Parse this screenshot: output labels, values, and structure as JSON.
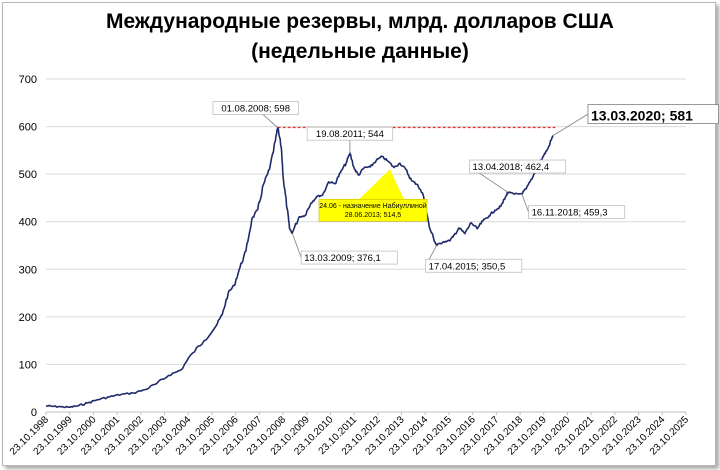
{
  "chart_data": {
    "type": "line",
    "title": "Международные резервы, млрд. долларов США",
    "subtitle": "(недельные данные)",
    "xlabel": "",
    "ylabel": "",
    "ylim": [
      0,
      700
    ],
    "yticks": [
      0,
      100,
      200,
      300,
      400,
      500,
      600,
      700
    ],
    "xlim": [
      "1998-10-23",
      "2025-10-23"
    ],
    "xtick_labels": [
      "23.10.1998",
      "23.10.1999",
      "23.10.2000",
      "23.10.2001",
      "23.10.2002",
      "23.10.2003",
      "23.10.2004",
      "23.10.2005",
      "23.10.2006",
      "23.10.2007",
      "23.10.2008",
      "23.10.2009",
      "23.10.2010",
      "23.10.2011",
      "23.10.2012",
      "23.10.2013",
      "23.10.2014",
      "23.10.2015",
      "23.10.2016",
      "23.10.2017",
      "23.10.2018",
      "23.10.2019",
      "23.10.2020",
      "23.10.2021",
      "23.10.2022",
      "23.10.2023",
      "23.10.2024",
      "23.10.2025"
    ],
    "grid": "horizontal",
    "legend": "none",
    "line_color": "#1f2a6b",
    "reference_line": {
      "value": 598,
      "color": "#e8332d",
      "style": "dashed",
      "from": "2008-08-01",
      "to": "2020-04-20"
    },
    "series": [
      {
        "x": [
          "1998-10-23",
          "1999-01-29",
          "1999-06-11",
          "1999-10-22",
          "2000-03-03",
          "2000-07-21",
          "2000-12-29",
          "2001-06-29",
          "2001-12-28",
          "2002-06-28",
          "2002-12-27",
          "2003-06-27",
          "2003-12-26",
          "2004-06-25",
          "2004-12-31",
          "2005-06-24",
          "2005-12-30",
          "2006-03-31",
          "2006-06-30",
          "2006-09-29",
          "2006-12-29",
          "2007-03-30",
          "2007-06-29",
          "2007-09-28",
          "2007-12-28",
          "2008-03-28",
          "2008-06-27",
          "2008-08-01",
          "2008-09-26",
          "2008-10-31",
          "2008-12-26",
          "2009-01-30",
          "2009-03-13",
          "2009-06-26",
          "2009-09-25",
          "2009-12-25",
          "2010-03-26",
          "2010-06-25",
          "2010-09-24",
          "2010-12-31",
          "2011-03-25",
          "2011-06-24",
          "2011-08-19",
          "2011-10-28",
          "2011-12-30",
          "2012-03-30",
          "2012-06-29",
          "2012-09-28",
          "2012-12-28",
          "2013-03-29",
          "2013-06-28",
          "2013-09-27",
          "2013-12-27",
          "2014-03-28",
          "2014-06-27",
          "2014-09-26",
          "2014-12-26",
          "2015-03-27",
          "2015-04-17",
          "2015-07-31",
          "2015-10-30",
          "2015-12-25",
          "2016-03-25",
          "2016-06-24",
          "2016-09-30",
          "2016-12-30",
          "2017-03-31",
          "2017-06-30",
          "2017-09-29",
          "2017-12-29",
          "2018-03-30",
          "2018-04-13",
          "2018-07-27",
          "2018-11-16",
          "2019-01-25",
          "2019-04-26",
          "2019-07-26",
          "2019-10-25",
          "2019-12-27",
          "2020-03-13"
        ],
        "values": [
          13,
          12,
          11,
          10,
          13,
          19,
          26,
          32,
          37,
          40,
          47,
          60,
          77,
          88,
          124,
          150,
          182,
          205,
          250,
          266,
          304,
          338,
          405,
          425,
          479,
          510,
          570,
          598,
          556,
          484,
          427,
          386,
          376,
          410,
          413,
          439,
          453,
          456,
          484,
          480,
          503,
          524,
          544,
          511,
          498,
          514,
          515,
          529,
          537,
          527,
          514,
          523,
          510,
          486,
          478,
          454,
          388,
          356,
          350,
          358,
          360,
          368,
          387,
          375,
          398,
          385,
          402,
          412,
          424,
          432,
          456,
          462,
          458,
          459,
          469,
          490,
          518,
          540,
          554,
          581
        ]
      }
    ],
    "annotations": [
      {
        "x": "2008-08-01",
        "value": 598,
        "label": "01.08.2008; 598"
      },
      {
        "x": "2009-03-13",
        "value": 376.1,
        "label": "13.03.2009; 376,1"
      },
      {
        "x": "2011-08-19",
        "value": 544,
        "label": "19.08.2011; 544"
      },
      {
        "x": "2015-04-17",
        "value": 350.5,
        "label": "17.04.2015; 350,5"
      },
      {
        "x": "2018-04-13",
        "value": 462.4,
        "label": "13.04.2018; 462,4"
      },
      {
        "x": "2018-11-16",
        "value": 459.3,
        "label": "16.11.2018; 459,3"
      },
      {
        "x": "2020-03-13",
        "value": 581,
        "label": "13.03.2020; 581"
      }
    ],
    "callout": {
      "x": "2013-06-28",
      "value": 514.5,
      "line1": "24.06 - назначение Набиуллиной",
      "line2": "28.06.2013; 514,5",
      "color": "#ffff00"
    }
  }
}
